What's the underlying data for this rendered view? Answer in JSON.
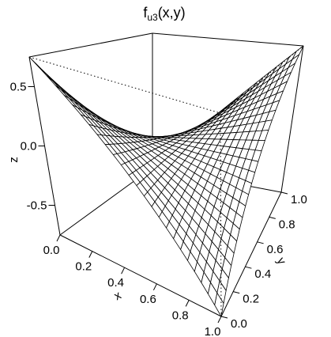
{
  "chart_data": {
    "type": "surface",
    "title": {
      "base": "f",
      "subscript": "u3",
      "args": "(x,y)"
    },
    "xlabel": "x",
    "ylabel": "y",
    "zlabel": "z",
    "xlim": [
      0,
      1
    ],
    "ylim": [
      0,
      1
    ],
    "zlim": [
      -0.75,
      0.75
    ],
    "x_ticks": [
      "0.0",
      "0.2",
      "0.4",
      "0.6",
      "0.8",
      "1.0"
    ],
    "y_ticks": [
      "0.0",
      "0.2",
      "0.4",
      "0.6",
      "0.8",
      "1.0"
    ],
    "z_ticks": [
      "-0.5",
      "0.0",
      "0.5"
    ],
    "grid_n": 25,
    "surface_function": "(x - 0.5) * (y - 0.5) * 3",
    "corner_values": {
      "x0_y0": 0.75,
      "x0_y1": -0.75,
      "x1_y0": -0.75,
      "x1_y1": 0.75
    },
    "surface_color": "#ffffff",
    "line_color": "#000000"
  }
}
